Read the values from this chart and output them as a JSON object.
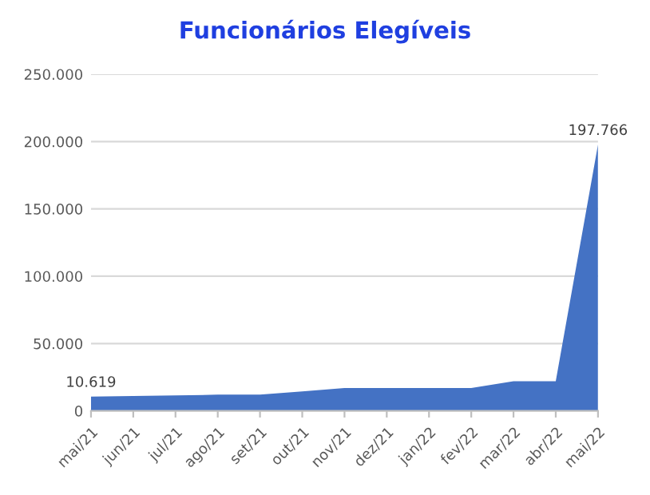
{
  "chart_data": {
    "type": "area",
    "title": "Funcionários Elegíveis",
    "categories": [
      "mai/21",
      "jun/21",
      "jul/21",
      "ago/21",
      "set/21",
      "out/21",
      "nov/21",
      "dez/21",
      "jan/22",
      "fev/22",
      "mar/22",
      "abr/22",
      "mai/22"
    ],
    "series": [
      {
        "color": "#4472c4",
        "values": [
          10619,
          11000,
          11500,
          12000,
          12000,
          14500,
          17000,
          17000,
          17000,
          17000,
          22000,
          22000,
          197766
        ],
        "value_labels": [
          "10.619",
          null,
          null,
          null,
          null,
          null,
          null,
          null,
          null,
          null,
          null,
          null,
          "197.766"
        ]
      }
    ],
    "ylim": [
      0,
      250000
    ],
    "yticks": [
      {
        "value": 0,
        "label": "0"
      },
      {
        "value": 50000,
        "label": "50.000"
      },
      {
        "value": 100000,
        "label": "100.000"
      },
      {
        "value": 150000,
        "label": "150.000"
      },
      {
        "value": 200000,
        "label": "200.000"
      },
      {
        "value": 250000,
        "label": "250.000"
      }
    ],
    "grid": "y",
    "legend": false
  }
}
